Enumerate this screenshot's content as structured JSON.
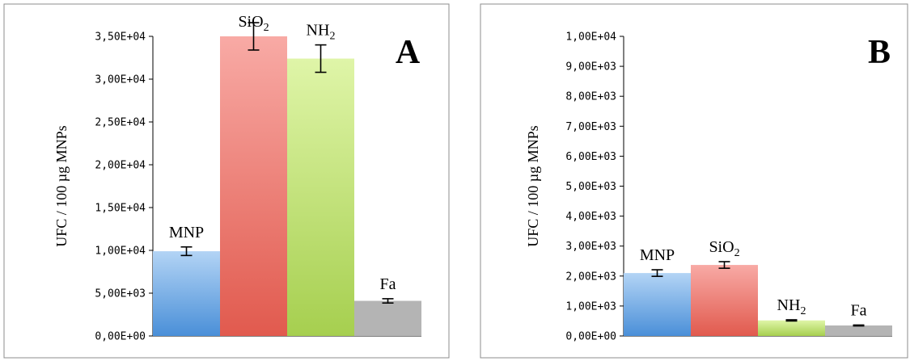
{
  "chart_data": [
    {
      "type": "bar",
      "panel_label": "A",
      "ylabel": "UFC / 100 µg MNPs",
      "ylim": [
        0,
        35000
      ],
      "y_ticks": [
        "0,00E+00",
        "5,00E+03",
        "1,00E+04",
        "1,50E+04",
        "2,00E+04",
        "2,50E+04",
        "3,00E+04",
        "3,50E+04"
      ],
      "grid": false,
      "categories": [
        "MNP",
        "SiO2",
        "NH2",
        "Fa"
      ],
      "bar_labels": [
        {
          "main": "MNP",
          "sub": ""
        },
        {
          "main": "SiO",
          "sub": "2"
        },
        {
          "main": "NH",
          "sub": "2"
        },
        {
          "main": "Fa",
          "sub": ""
        }
      ],
      "values": [
        9900,
        35000,
        32400,
        4100
      ],
      "errors": [
        500,
        1600,
        1600,
        250
      ],
      "colors": [
        [
          "#b3d4f5",
          "#4a8fd8"
        ],
        [
          "#f8aaa5",
          "#e15a4e"
        ],
        [
          "#dff5a8",
          "#a6cf4f"
        ],
        [
          "#b4b4b4",
          "#b4b4b4"
        ]
      ]
    },
    {
      "type": "bar",
      "panel_label": "B",
      "ylabel": "UFC / 100 µg MNPs",
      "ylim": [
        0,
        10000
      ],
      "y_ticks": [
        "0,00E+00",
        "1,00E+03",
        "2,00E+03",
        "3,00E+03",
        "4,00E+03",
        "5,00E+03",
        "6,00E+03",
        "7,00E+03",
        "8,00E+03",
        "9,00E+03",
        "1,00E+04"
      ],
      "grid": false,
      "categories": [
        "MNP",
        "SiO2",
        "NH2",
        "Fa"
      ],
      "bar_labels": [
        {
          "main": "MNP",
          "sub": ""
        },
        {
          "main": "SiO",
          "sub": "2"
        },
        {
          "main": "NH",
          "sub": "2"
        },
        {
          "main": "Fa",
          "sub": ""
        }
      ],
      "values": [
        2100,
        2370,
        520,
        350
      ],
      "errors": [
        110,
        110,
        20,
        15
      ],
      "colors": [
        [
          "#b3d4f5",
          "#4a8fd8"
        ],
        [
          "#f8aaa5",
          "#e15a4e"
        ],
        [
          "#dff5a8",
          "#a6cf4f"
        ],
        [
          "#b4b4b4",
          "#b4b4b4"
        ]
      ]
    }
  ]
}
